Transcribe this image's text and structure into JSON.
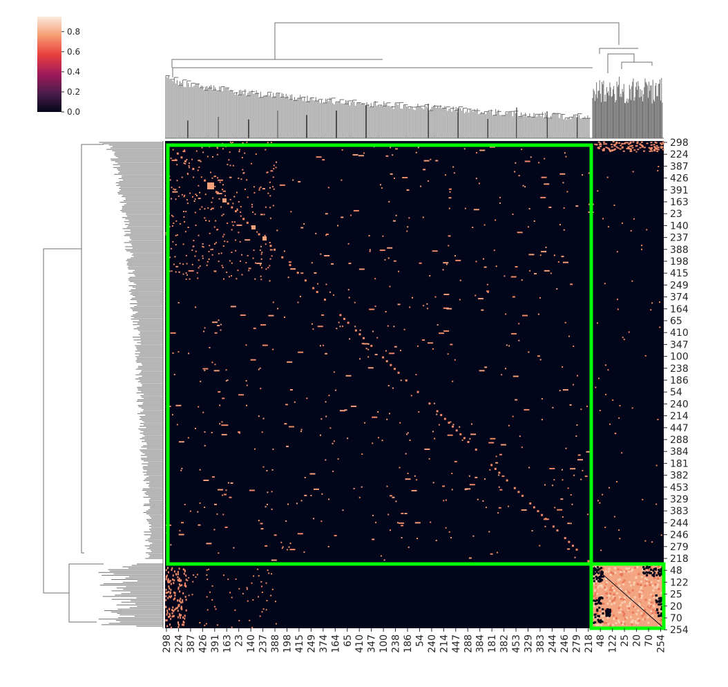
{
  "chart_data": {
    "type": "heatmap",
    "title": "",
    "xlabel": "",
    "ylabel": "",
    "ordered_labels": [
      "298",
      "224",
      "387",
      "426",
      "391",
      "163",
      "23",
      "140",
      "237",
      "388",
      "198",
      "415",
      "249",
      "374",
      "164",
      "65",
      "410",
      "347",
      "100",
      "238",
      "186",
      "54",
      "240",
      "214",
      "447",
      "288",
      "384",
      "181",
      "382",
      "453",
      "329",
      "383",
      "244",
      "246",
      "279",
      "218",
      "48",
      "122",
      "25",
      "20",
      "70",
      "254"
    ],
    "clusters": [
      {
        "name": "",
        "from": "298",
        "to": "218",
        "within_similarity": "low",
        "highlight_color": "#00ff00"
      },
      {
        "name": "",
        "from": "48",
        "to": "254",
        "within_similarity": "high",
        "highlight_color": "#00ff00"
      }
    ],
    "colorbar": {
      "ticks": [
        0.0,
        0.2,
        0.4,
        0.6,
        0.8
      ],
      "tick_labels": [
        "0.0",
        "0.2",
        "0.4",
        "0.6",
        "0.8"
      ],
      "range": [
        0.0,
        0.95
      ],
      "colormap": "rocket",
      "colors": [
        "#03051a",
        "#4c1d4b",
        "#a11a5b",
        "#e83f3f",
        "#f69c73",
        "#faebdd"
      ]
    },
    "grid": false,
    "dendrograms": [
      "top",
      "left"
    ]
  }
}
